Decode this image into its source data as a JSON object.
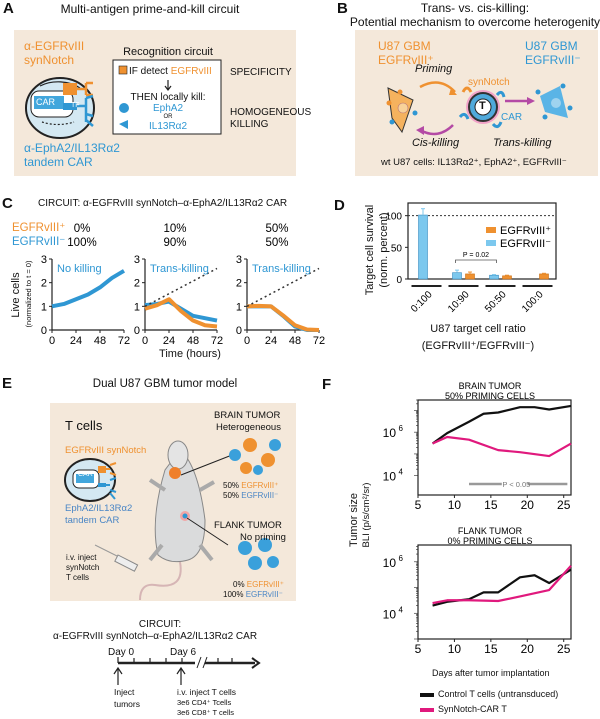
{
  "panels": {
    "a": {
      "label": "A",
      "title": "Multi-antigen prime-and-kill circuit",
      "synnotch": [
        "α-EGFRvIII",
        "synNotch"
      ],
      "car": [
        "α-EphA2/IL13Rα2",
        "tandem CAR"
      ],
      "tf": "TF",
      "car_box": "CAR",
      "circuit_title": "Recognition circuit",
      "if_text": "IF detect ",
      "if_antigen": "EGFRvIII",
      "then_text": "THEN locally kill:",
      "target1": "EphA2",
      "or": "OR",
      "target2": "IL13Rα2",
      "specificity": "SPECIFICITY",
      "homogeneous": "HOMOGENEOUS",
      "killing": "KILLING"
    },
    "b": {
      "label": "B",
      "title1": "Trans- vs. cis-killing:",
      "title2": "Potential mechanism to overcome heterogenity",
      "left_cell": [
        "U87 GBM",
        "EGFRvIII⁺"
      ],
      "right_cell": [
        "U87 GBM",
        "EGFRvIII⁻"
      ],
      "priming": "Priming",
      "synnotch": "synNotch",
      "t": "T",
      "car": "CAR",
      "cis": "Cis-killing",
      "trans": "Trans-killing",
      "footnote": "wt U87 cells: IL13Rα2⁺, EphA2⁺, EGFRvIII⁻"
    },
    "c": {
      "label": "C",
      "circuit": "CIRCUIT:  α-EGFRvIII synNotch–α-EphA2/IL13Rα2 CAR",
      "row_pos": "EGFRvIII⁺",
      "row_neg": "EGFRvIII⁻",
      "ylabel": "Live cells",
      "ylabel2": "(normalized to t = 0)",
      "xlabel": "Time (hours)"
    },
    "d": {
      "label": "D"
    },
    "e": {
      "label": "E",
      "title": "Dual U87 GBM tumor model",
      "tcells": "T cells",
      "synnotch": "EGFRvIII synNotch",
      "car_box": "CAR",
      "car": [
        "EphA2/IL13Rα2",
        "tandem CAR"
      ],
      "inject": [
        "i.v. inject",
        "synNotch",
        "T cells"
      ],
      "brain": [
        "BRAIN TUMOR",
        "Heterogeneous"
      ],
      "brain_pct": [
        {
          "pct": "50% ",
          "name": "EGFRvIII⁺"
        },
        {
          "pct": "50% ",
          "name": "EGFRvIII⁻"
        }
      ],
      "flank": [
        "FLANK TUMOR",
        "No priming"
      ],
      "flank_pct": [
        {
          "pct": "0% ",
          "name": "EGFRvIII⁺"
        },
        {
          "pct": "100% ",
          "name": "EGFRvIII⁻"
        }
      ],
      "circuit": [
        "CIRCUIT:",
        "α-EGFRvIII synNotch–α-EphA2/IL13Rα2 CAR"
      ],
      "day0": "Day 0",
      "day6": "Day 6",
      "inject_tumors": [
        "Inject",
        "tumors"
      ],
      "inject_t": [
        "i.v. inject T cells",
        "3e6 CD4⁺ Tcells",
        "3e6 CD8⁺ T cells"
      ]
    },
    "f": {
      "label": "F",
      "ylabel": "Tumor size",
      "ylabel2": "BLI (p/s/cm²/sr)",
      "xlabel": "Days after tumor implantation"
    }
  },
  "colors": {
    "orange": "#ef9130",
    "blue": "#2f97d3",
    "lightblue": "#7cc8ee",
    "magenta": "#e0197d",
    "beige": "#f4e8da"
  },
  "chart_data": [
    {
      "type": "line",
      "panel": "C",
      "xlim": [
        0,
        72
      ],
      "ylim": [
        0,
        3
      ],
      "xticks": [
        0,
        24,
        48,
        72
      ],
      "yticks": [
        0,
        1,
        2,
        3
      ],
      "subplots": [
        {
          "pos": "0%",
          "neg": "100%",
          "annotation": "No killing",
          "series": [
            {
              "color": "blue",
              "x": [
                0,
                12,
                24,
                36,
                48,
                60,
                72
              ],
              "y": [
                1,
                1.1,
                1.3,
                1.5,
                1.8,
                2.2,
                2.5
              ]
            }
          ]
        },
        {
          "pos": "10%",
          "neg": "90%",
          "annotation": "Trans-killing",
          "series": [
            {
              "color": "blue",
              "x": [
                0,
                12,
                24,
                36,
                48,
                60,
                72
              ],
              "y": [
                1.05,
                1.1,
                1.2,
                0.9,
                0.6,
                0.5,
                0.4
              ]
            },
            {
              "color": "orange",
              "x": [
                0,
                12,
                24,
                36,
                48,
                60,
                72
              ],
              "y": [
                0.9,
                1.05,
                1.3,
                0.8,
                0.4,
                0.2,
                0.15
              ]
            },
            {
              "color": "reference",
              "dashed": true,
              "x": [
                0,
                72
              ],
              "y": [
                1,
                2.6
              ]
            }
          ]
        },
        {
          "pos": "50%",
          "neg": "50%",
          "annotation": "Trans-killing",
          "series": [
            {
              "color": "blue",
              "x": [
                0,
                12,
                24,
                36,
                48,
                60,
                72
              ],
              "y": [
                1,
                1,
                1,
                0.6,
                0.15,
                0,
                0
              ]
            },
            {
              "color": "orange",
              "x": [
                0,
                12,
                24,
                36,
                48,
                60,
                72
              ],
              "y": [
                1,
                1.02,
                1,
                0.62,
                0.2,
                0.02,
                0
              ]
            },
            {
              "color": "reference",
              "dashed": true,
              "x": [
                0,
                72
              ],
              "y": [
                1,
                2.6
              ]
            }
          ]
        }
      ]
    },
    {
      "type": "bar",
      "panel": "D",
      "ylabel": "Target cell survival",
      "ylabel2": "(norm. percent)",
      "xlabel": "U87 target cell ratio",
      "xlabel2": "(EGFRvIII⁺/EGFRvIII⁻)",
      "ylim": [
        0,
        120
      ],
      "yticks": [
        0,
        50,
        100
      ],
      "reference_line": 100,
      "categories": [
        "0:100",
        "10:90",
        "50:50",
        "100:0"
      ],
      "series": [
        {
          "name": "EGFRvIII⁺",
          "color": "orange",
          "values": [
            null,
            8,
            5,
            8
          ],
          "errors": [
            null,
            3,
            1,
            1
          ]
        },
        {
          "name": "EGFRvIII⁻",
          "color": "lightblue",
          "values": [
            101,
            10,
            6,
            null
          ],
          "errors": [
            10,
            4,
            1,
            null
          ]
        }
      ],
      "annotation": "P = 0.02",
      "legend": "top-right"
    },
    {
      "type": "line",
      "panel": "F",
      "scale": "log",
      "xlim": [
        5,
        26
      ],
      "xticks": [
        5,
        10,
        15,
        20,
        25
      ],
      "legend": [
        {
          "name": "Control T cells (untransduced)",
          "color": "#111111"
        },
        {
          "name": "SynNotch-CAR T",
          "color": "#e0197d"
        }
      ],
      "subplots": [
        {
          "title": [
            "BRAIN TUMOR",
            "50% PRIMING CELLS"
          ],
          "ylim": [
            1300,
            30000000.0
          ],
          "yticks": [
            {
              "v": 10000.0,
              "base": "10",
              "exp": "4"
            },
            {
              "v": 1000000.0,
              "base": "10",
              "exp": "6"
            }
          ],
          "annotation": "P < 0.05",
          "series": [
            {
              "name": "Control",
              "x": [
                7,
                9,
                12,
                14,
                16,
                19,
                21,
                23,
                26
              ],
              "y": [
                300000.0,
                900000.0,
                3000000.0,
                7000000.0,
                8000000.0,
                14000000.0,
                14000000.0,
                11000000.0,
                16000000.0
              ]
            },
            {
              "name": "SynNotch",
              "x": [
                7,
                9,
                12,
                16,
                19,
                23,
                26
              ],
              "y": [
                300000.0,
                600000.0,
                450000.0,
                150000.0,
                120000.0,
                80000.0,
                300000.0
              ]
            }
          ]
        },
        {
          "title": [
            "FLANK TUMOR",
            "0% PRIMING CELLS"
          ],
          "ylim": [
            1000,
            4500000.0
          ],
          "yticks": [
            {
              "v": 10000.0,
              "base": "10",
              "exp": "4"
            },
            {
              "v": 1000000.0,
              "base": "10",
              "exp": "6"
            }
          ],
          "series": [
            {
              "name": "Control",
              "x": [
                7,
                9,
                12,
                14,
                16,
                19,
                21,
                23,
                26
              ],
              "y": [
                20000.0,
                28000.0,
                35000.0,
                65000.0,
                65000.0,
                250000.0,
                300000.0,
                150000.0,
                500000.0
              ]
            },
            {
              "name": "SynNotch",
              "x": [
                7,
                9,
                12,
                16,
                19,
                23,
                26
              ],
              "y": [
                25000.0,
                32000.0,
                32000.0,
                30000.0,
                45000.0,
                80000.0,
                700000.0
              ]
            }
          ]
        }
      ]
    }
  ]
}
